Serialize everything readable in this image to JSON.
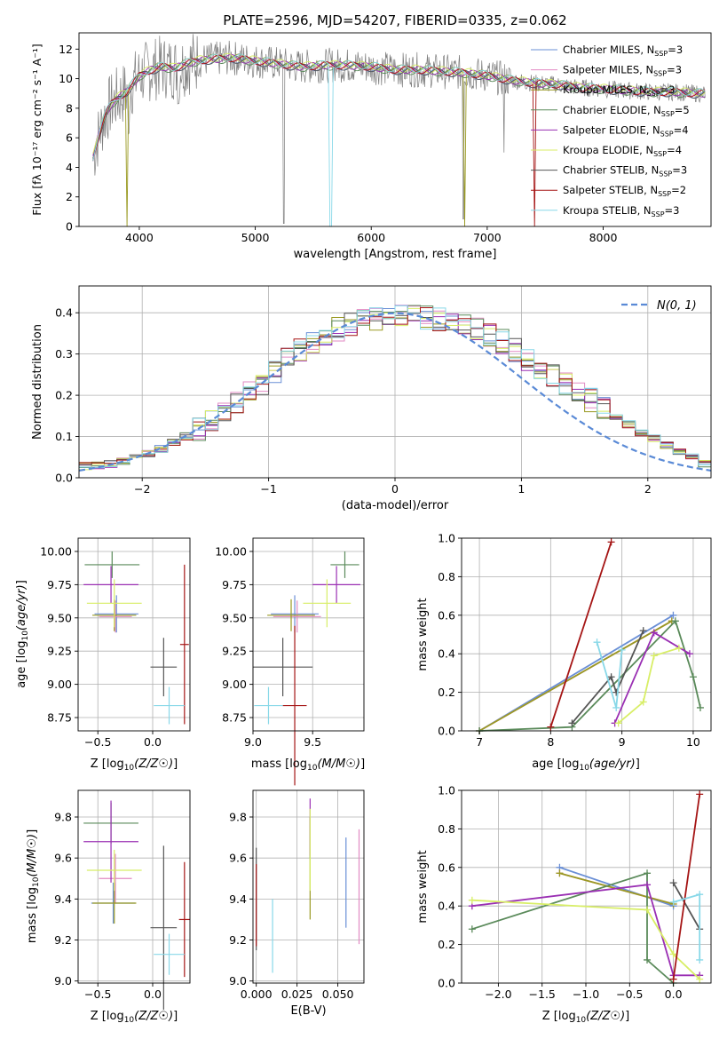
{
  "title": "PLATE=2596, MJD=54207, FIBERID=0335, z=0.062",
  "colors": [
    "#6a8fd6",
    "#e28ac3",
    "#9a9a22",
    "#5a8a5a",
    "#9a2fb3",
    "#d8ee66",
    "#555555",
    "#a51515",
    "#88d8e8"
  ],
  "spectrum": {
    "xlabel": "wavelength [Angstrom, rest frame]",
    "ylabel": "Flux [fλ 10⁻¹⁷ erg cm⁻² s⁻¹ A⁻¹]",
    "xlim": [
      3480,
      8930
    ],
    "ylim": [
      0,
      13.1
    ],
    "xticks": [
      "4000",
      "5000",
      "6000",
      "7000",
      "8000"
    ],
    "yticks": [
      "0",
      "2",
      "4",
      "6",
      "8",
      "10",
      "12"
    ],
    "legend": [
      {
        "label": "Chabrier MILES, N",
        "sub": "SSP",
        "suffix": "=3"
      },
      {
        "label": "Salpeter MILES, N",
        "sub": "SSP",
        "suffix": "=3"
      },
      {
        "label": "Kroupa MILES, N",
        "sub": "SSP",
        "suffix": "=3"
      },
      {
        "label": "Chabrier ELODIE, N",
        "sub": "SSP",
        "suffix": "=5"
      },
      {
        "label": "Salpeter ELODIE, N",
        "sub": "SSP",
        "suffix": "=4"
      },
      {
        "label": "Kroupa ELODIE, N",
        "sub": "SSP",
        "suffix": "=4"
      },
      {
        "label": "Chabrier STELIB, N",
        "sub": "SSP",
        "suffix": "=3"
      },
      {
        "label": "Salpeter STELIB, N",
        "sub": "SSP",
        "suffix": "=2"
      },
      {
        "label": "Kroupa STELIB, N",
        "sub": "SSP",
        "suffix": "=3"
      }
    ],
    "model_points": {
      "x": [
        3600,
        3650,
        3700,
        3750,
        3800,
        3900,
        4000,
        4100,
        4200,
        4300,
        4400,
        4500,
        4600,
        4800,
        5000,
        5200,
        5400,
        5600,
        5800,
        6000,
        6200,
        6400,
        6600,
        6800,
        7000,
        7200,
        7400,
        7600,
        7800,
        8000,
        8200,
        8400,
        8600,
        8800
      ],
      "y": [
        4.6,
        6.2,
        7.4,
        8.2,
        8.6,
        9.2,
        10.2,
        10.6,
        10.8,
        10.7,
        11.0,
        11.2,
        11.3,
        11.4,
        11.2,
        11.0,
        10.8,
        10.9,
        10.9,
        10.8,
        10.6,
        10.6,
        10.5,
        10.4,
        10.2,
        9.9,
        9.7,
        9.6,
        9.4,
        9.3,
        9.2,
        9.1,
        9.1,
        9.0
      ]
    }
  },
  "residuals": {
    "xlabel": "(data-model)/error",
    "ylabel": "Normed distribution",
    "legend": "N(0, 1)",
    "xlim": [
      -2.5,
      2.5
    ],
    "ylim": [
      0,
      0.465
    ],
    "xticks": [
      "−2",
      "−1",
      "0",
      "1",
      "2"
    ],
    "yticks": [
      "0.0",
      "0.1",
      "0.2",
      "0.3",
      "0.4"
    ],
    "bin_centers": [
      -2.45,
      -2.35,
      -2.25,
      -2.15,
      -2.05,
      -1.95,
      -1.85,
      -1.75,
      -1.65,
      -1.55,
      -1.45,
      -1.35,
      -1.25,
      -1.15,
      -1.05,
      -0.95,
      -0.85,
      -0.75,
      -0.65,
      -0.55,
      -0.45,
      -0.35,
      -0.25,
      -0.15,
      -0.05,
      0.05,
      0.15,
      0.25,
      0.35,
      0.45,
      0.55,
      0.65,
      0.75,
      0.85,
      0.95,
      1.05,
      1.15,
      1.25,
      1.35,
      1.45,
      1.55,
      1.65,
      1.75,
      1.85,
      1.95,
      2.05,
      2.15,
      2.25,
      2.35,
      2.45
    ],
    "base": [
      0.028,
      0.03,
      0.033,
      0.04,
      0.048,
      0.058,
      0.07,
      0.085,
      0.1,
      0.117,
      0.135,
      0.155,
      0.18,
      0.205,
      0.23,
      0.26,
      0.29,
      0.31,
      0.33,
      0.345,
      0.36,
      0.37,
      0.38,
      0.385,
      0.392,
      0.395,
      0.393,
      0.39,
      0.385,
      0.378,
      0.37,
      0.36,
      0.345,
      0.33,
      0.31,
      0.29,
      0.27,
      0.25,
      0.23,
      0.21,
      0.19,
      0.17,
      0.15,
      0.13,
      0.11,
      0.095,
      0.08,
      0.065,
      0.05,
      0.035
    ]
  },
  "panel_age_Z": {
    "xlabel": "Z [log10(Z/Z☉)]",
    "ylabel": "age  [log10(age/yr)]",
    "xticks": [
      "−0.5",
      "0.0"
    ],
    "yticks": [
      "8.75",
      "9.00",
      "9.25",
      "9.50",
      "9.75",
      "10.00"
    ]
  },
  "panel_age_mass": {
    "xlabel": "mass [log10(M/M☉)]",
    "xticks": [
      "9.0",
      "9.5"
    ],
    "yticks": [
      "8.75",
      "9.00",
      "9.25",
      "9.50",
      "9.75",
      "10.00"
    ]
  },
  "panel_mass_Z": {
    "xlabel": "Z [log10(Z/Z☉)]",
    "ylabel": "mass [log10(M/M☉)]",
    "xticks": [
      "−0.5",
      "0.0"
    ],
    "yticks": [
      "9.0",
      "9.2",
      "9.4",
      "9.6",
      "9.8"
    ]
  },
  "panel_mass_ebv": {
    "xlabel": "E(B-V)",
    "xticks": [
      "0.000",
      "0.025",
      "0.050"
    ],
    "yticks": [
      "9.0",
      "9.2",
      "9.4",
      "9.6",
      "9.8"
    ]
  },
  "panel_w_age": {
    "xlabel": "age  [log10(age/yr)]",
    "ylabel": "mass weight",
    "xticks": [
      "7",
      "8",
      "9",
      "10"
    ],
    "yticks": [
      "0.0",
      "0.2",
      "0.4",
      "0.6",
      "0.8",
      "1.0"
    ]
  },
  "panel_w_Z": {
    "xlabel": "Z [log10(Z/Z☉)]",
    "ylabel": "mass weight",
    "xticks": [
      "−2.0",
      "−1.5",
      "−1.0",
      "−0.5",
      "0.0"
    ],
    "yticks": [
      "0.0",
      "0.2",
      "0.4",
      "0.6",
      "0.8",
      "1.0"
    ]
  },
  "chart_data": [
    {
      "type": "line",
      "title": "PLATE=2596, MJD=54207, FIBERID=0335, z=0.062",
      "xlabel": "wavelength [Angstrom, rest frame]",
      "ylabel": "Flux [fλ 10⁻¹⁷ erg cm⁻² s⁻¹ A⁻¹]",
      "xlim": [
        3480,
        8930
      ],
      "ylim": [
        0,
        13.1
      ],
      "note_series": [
        "Chabrier MILES",
        "Salpeter MILES",
        "Kroupa MILES",
        "Chabrier ELODIE",
        "Salpeter ELODIE",
        "Kroupa ELODIE",
        "Chabrier STELIB",
        "Salpeter STELIB",
        "Kroupa STELIB"
      ],
      "legend_placement": "top-right",
      "grid": false
    },
    {
      "type": "line",
      "xlabel": "(data-model)/error",
      "ylabel": "Normed distribution",
      "xlim": [
        -2.5,
        2.5
      ],
      "ylim": [
        0,
        0.465
      ],
      "grid": true,
      "legend_placement": "top-right"
    },
    {
      "type": "scatter",
      "xlabel": "Z [log10(Z/Z☉)]",
      "ylabel": "age  [log10(age/yr)]",
      "xlim": [
        -0.7,
        0.35
      ],
      "ylim": [
        8.65,
        10.08
      ],
      "series": [
        {
          "x": -0.34,
          "xerr": 0.2,
          "y": 9.52,
          "yerr": 0.15
        },
        {
          "x": -0.33,
          "xerr": 0.15,
          "y": 9.51,
          "yerr": 0.12
        },
        {
          "x": -0.35,
          "xerr": 0.2,
          "y": 9.52,
          "yerr": 0.12
        },
        {
          "x": -0.38,
          "xerr": 0.25,
          "y": 9.9,
          "yerr": 0.1
        },
        {
          "x": -0.38,
          "xerr": 0.25,
          "y": 9.75,
          "yerr": 0.15
        },
        {
          "x": -0.35,
          "xerr": 0.25,
          "y": 9.61,
          "yerr": 0.18
        },
        {
          "x": 0.1,
          "xerr": 0.12,
          "y": 9.13,
          "yerr": 0.22
        },
        {
          "x": 0.29,
          "xerr": 0.05,
          "y": 9.3,
          "yerr": 0.6
        },
        {
          "x": 0.15,
          "xerr": 0.15,
          "y": 8.84,
          "yerr": 0.14
        }
      ]
    },
    {
      "type": "scatter",
      "xlabel": "mass [log10(M/M☉)]",
      "xlim": [
        9.0,
        9.93
      ],
      "ylim": [
        8.65,
        10.08
      ]
    },
    {
      "type": "scatter",
      "xlabel": "Z [log10(Z/Z☉)]",
      "ylabel": "mass [log10(M/M☉)]",
      "xlim": [
        -0.7,
        0.35
      ],
      "ylim": [
        9.0,
        9.92
      ]
    },
    {
      "type": "scatter",
      "xlabel": "E(B-V)",
      "xlim": [
        -0.003,
        0.066
      ],
      "ylim": [
        9.0,
        9.92
      ]
    },
    {
      "type": "line",
      "xlabel": "age  [log10(age/yr)]",
      "ylabel": "mass weight",
      "xlim": [
        6.75,
        10.25
      ],
      "ylim": [
        0,
        1.0
      ],
      "series": [
        {
          "x": [
            7.0,
            9.72
          ],
          "y": [
            0.0,
            0.6
          ]
        },
        {
          "x": [
            7.0,
            9.7
          ],
          "y": [
            0.0,
            0.57
          ]
        },
        {
          "x": [
            7.0,
            9.7
          ],
          "y": [
            0.0,
            0.57
          ]
        },
        {
          "x": [
            7.0,
            8.3,
            9.75,
            10.0,
            10.1
          ],
          "y": [
            0.0,
            0.02,
            0.57,
            0.28,
            0.12
          ]
        },
        {
          "x": [
            8.9,
            9.45,
            9.95
          ],
          "y": [
            0.04,
            0.51,
            0.4
          ]
        },
        {
          "x": [
            8.95,
            9.3,
            9.45,
            9.8
          ],
          "y": [
            0.04,
            0.15,
            0.39,
            0.43
          ]
        },
        {
          "x": [
            8.3,
            8.85,
            8.92,
            9.3
          ],
          "y": [
            0.04,
            0.28,
            0.2,
            0.52
          ]
        },
        {
          "x": [
            8.0,
            8.85
          ],
          "y": [
            0.02,
            0.98
          ]
        },
        {
          "x": [
            8.65,
            8.92,
            9.0
          ],
          "y": [
            0.46,
            0.12,
            0.42
          ]
        }
      ]
    },
    {
      "type": "line",
      "xlabel": "Z [log10(Z/Z☉)]",
      "ylabel": "mass weight",
      "xlim": [
        -2.42,
        0.43
      ],
      "ylim": [
        0,
        1.0
      ],
      "series": [
        {
          "x": [
            -1.3,
            0.0
          ],
          "y": [
            0.6,
            0.4
          ]
        },
        {
          "x": [
            -1.3,
            0.0
          ],
          "y": [
            0.57,
            0.41
          ]
        },
        {
          "x": [
            -1.3,
            0.0
          ],
          "y": [
            0.57,
            0.41
          ]
        },
        {
          "x": [
            -2.3,
            -0.3,
            -0.3,
            0.0
          ],
          "y": [
            0.28,
            0.57,
            0.12,
            0.0
          ]
        },
        {
          "x": [
            -2.3,
            -0.3,
            0.0,
            0.3
          ],
          "y": [
            0.4,
            0.51,
            0.04,
            0.04
          ]
        },
        {
          "x": [
            -2.3,
            -0.3,
            0.0,
            0.3
          ],
          "y": [
            0.43,
            0.38,
            0.15,
            0.02
          ]
        },
        {
          "x": [
            0.0,
            0.3
          ],
          "y": [
            0.52,
            0.28
          ]
        },
        {
          "x": [
            0.0,
            0.3
          ],
          "y": [
            0.02,
            0.98
          ]
        },
        {
          "x": [
            0.0,
            0.3,
            0.3
          ],
          "y": [
            0.42,
            0.46,
            0.12
          ]
        }
      ]
    }
  ]
}
